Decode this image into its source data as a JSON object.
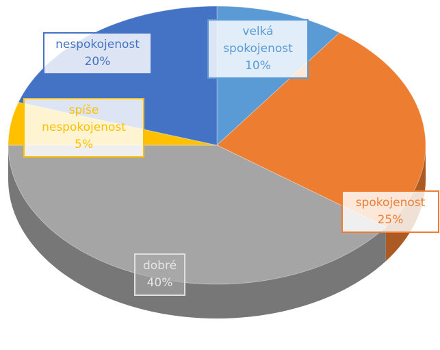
{
  "chart_data": {
    "type": "pie",
    "categories": [
      "velká spokojenost",
      "spokojenost",
      "dobré",
      "spíše nespokojenost",
      "nespokojenost"
    ],
    "values": [
      10,
      25,
      40,
      5,
      20
    ],
    "value_labels": [
      "10%",
      "25%",
      "40%",
      "5%",
      "20%"
    ],
    "colors": [
      "#5b9bd5",
      "#ed7d31",
      "#a5a5a5",
      "#ffc000",
      "#4472c4"
    ]
  }
}
